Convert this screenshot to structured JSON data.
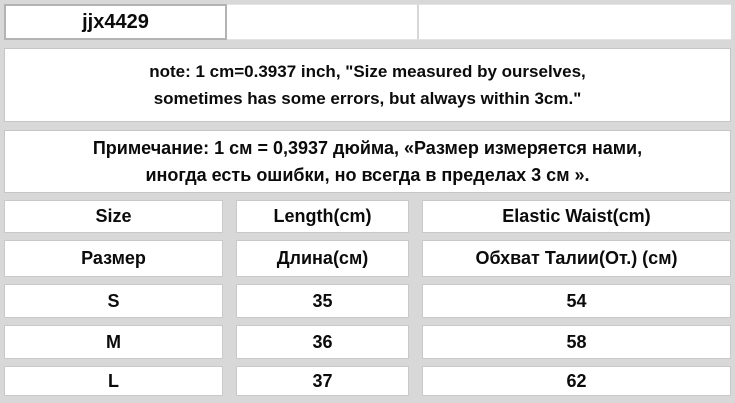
{
  "product": {
    "code": "jjx4429"
  },
  "notes": {
    "en_line1": "note: 1 cm=0.3937 inch, \"Size measured by ourselves,",
    "en_line2": "sometimes has some errors, but always within 3cm.\"",
    "ru_line1": "Примечание: 1 см = 0,3937 дюйма, «Размер измеряется нами,",
    "ru_line2": "иногда есть ошибки, но всегда в пределах 3 см »."
  },
  "size_table": {
    "headers_en": [
      "Size",
      "Length(cm)",
      "Elastic Waist(cm)"
    ],
    "headers_ru": [
      "Размер",
      "Длина(см)",
      "Обхват Талии(От.) (см)"
    ],
    "rows": [
      {
        "size": "S",
        "length_cm": "35",
        "elastic_waist_cm": "54"
      },
      {
        "size": "M",
        "length_cm": "36",
        "elastic_waist_cm": "58"
      },
      {
        "size": "L",
        "length_cm": "37",
        "elastic_waist_cm": "62"
      }
    ]
  },
  "colors": {
    "background": "#d8d8d8",
    "cell_background": "#ffffff",
    "cell_border": "#c9c9c9",
    "code_cell_border": "#b3b3b3",
    "text": "#0b0b0b"
  }
}
